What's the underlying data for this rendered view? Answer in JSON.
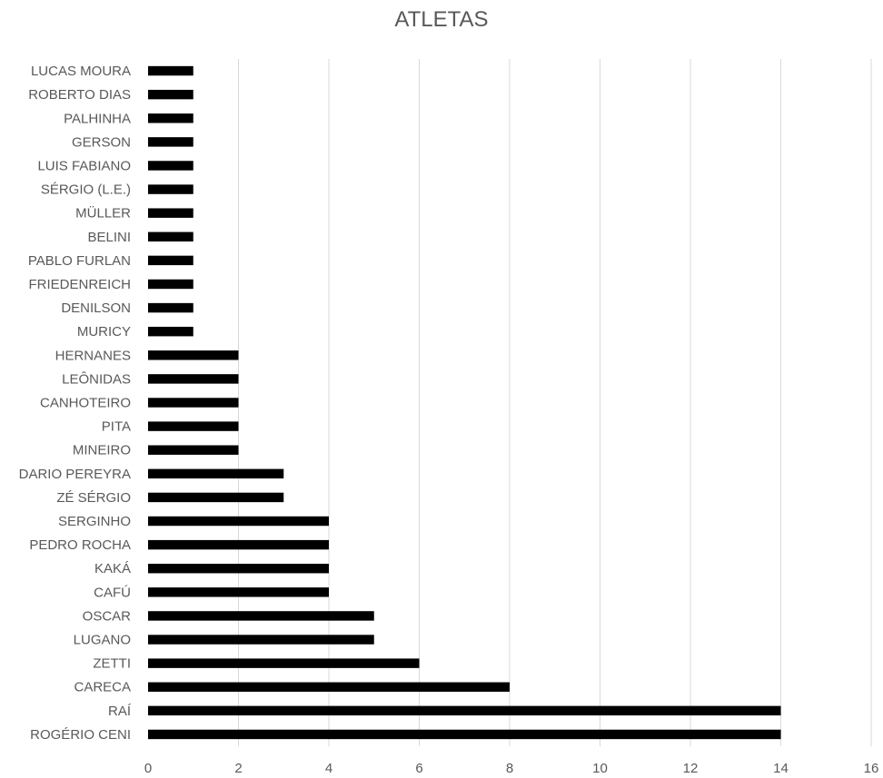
{
  "chart_data": {
    "type": "bar",
    "orientation": "horizontal",
    "title": "ATLETAS",
    "xlabel": "",
    "ylabel": "",
    "xlim": [
      0,
      16
    ],
    "xticks": [
      "0",
      "2",
      "4",
      "6",
      "8",
      "10",
      "12",
      "14",
      "16"
    ],
    "grid": "vertical",
    "bar_color": "#000000",
    "categories": [
      "ROGÉRIO CENI",
      "RAÍ",
      "CARECA",
      "ZETTI",
      "LUGANO",
      "OSCAR",
      "CAFÚ",
      "KAKÁ",
      "PEDRO ROCHA",
      "SERGINHO",
      "ZÉ SÉRGIO",
      "DARIO PEREYRA",
      "MINEIRO",
      "PITA",
      "CANHOTEIRO",
      "LEÔNIDAS",
      "HERNANES",
      "MURICY",
      "DENILSON",
      "FRIEDENREICH",
      "PABLO FURLAN",
      "BELINI",
      "MÜLLER",
      "SÉRGIO (L.E.)",
      "LUIS FABIANO",
      "GERSON",
      "PALHINHA",
      "ROBERTO DIAS",
      "LUCAS MOURA"
    ],
    "values": [
      14,
      14,
      8,
      6,
      5,
      5,
      4,
      4,
      4,
      4,
      3,
      3,
      2,
      2,
      2,
      2,
      2,
      1,
      1,
      1,
      1,
      1,
      1,
      1,
      1,
      1,
      1,
      1,
      1
    ]
  }
}
